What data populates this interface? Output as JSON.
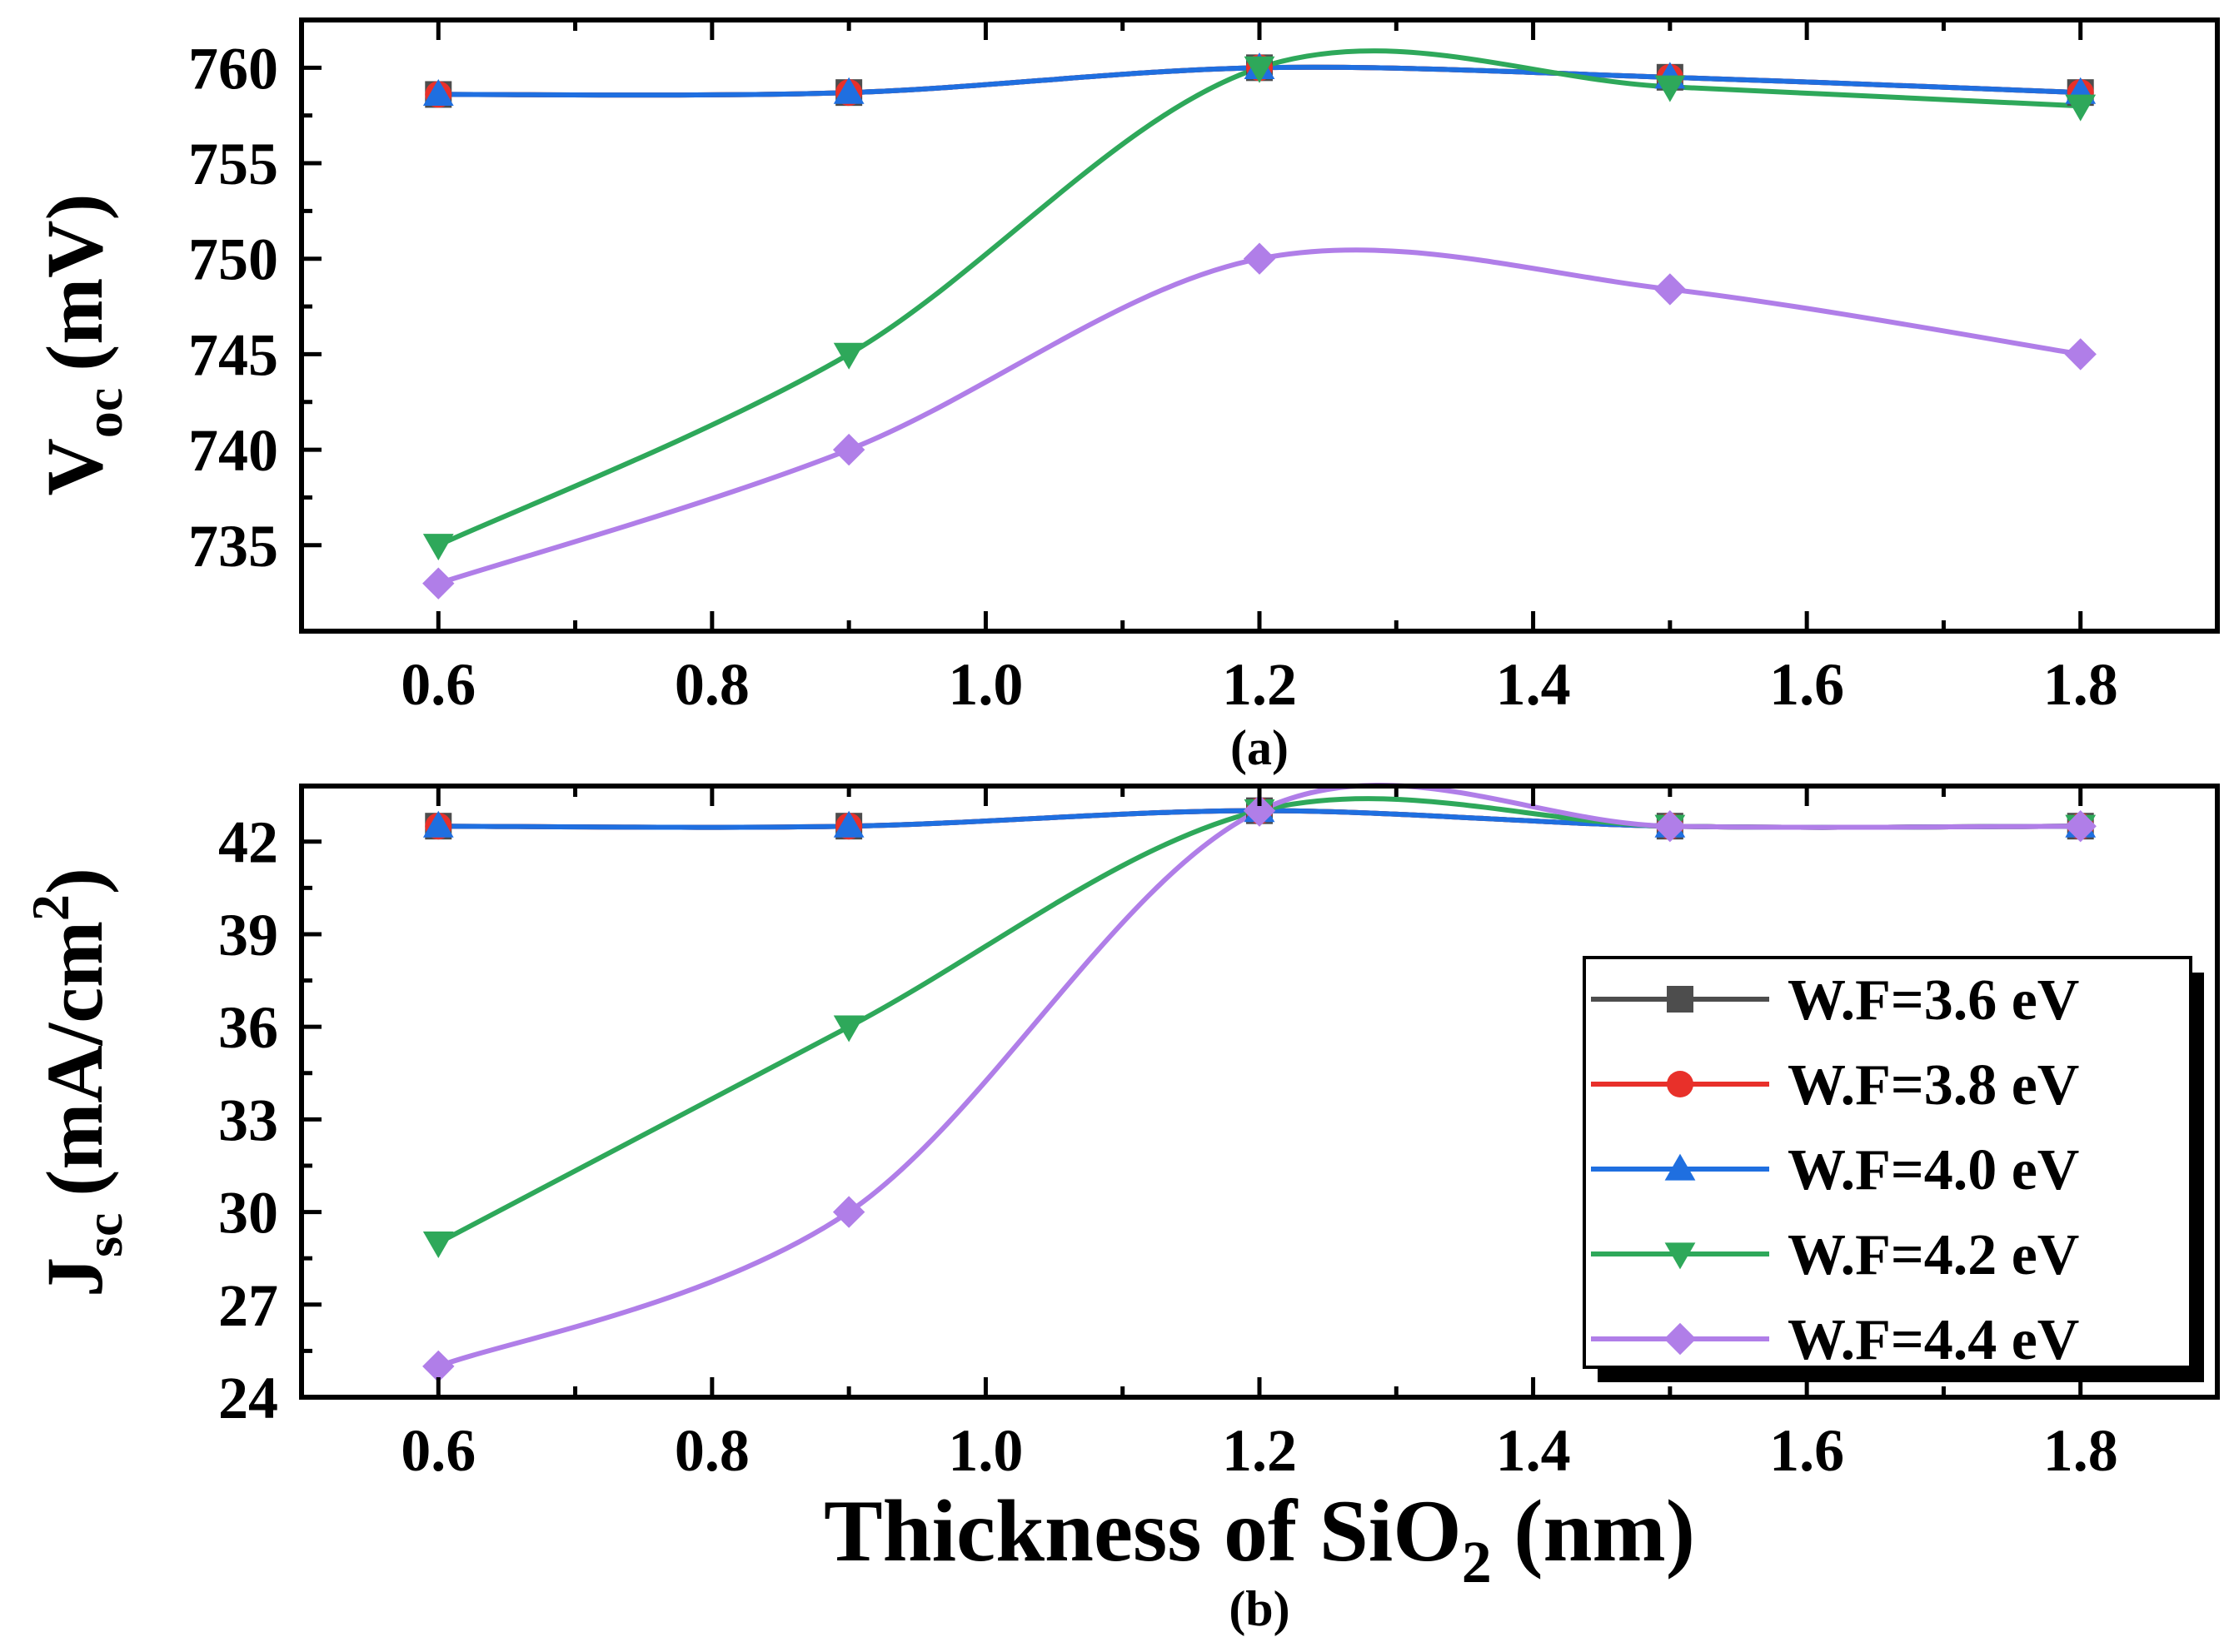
{
  "chart_data": [
    {
      "type": "line",
      "panel_label": "(a)",
      "ylabel_main": "V",
      "ylabel_sub": "oc",
      "ylabel_unit": "(mV)",
      "xlabel": "",
      "x": [
        0.6,
        0.9,
        1.2,
        1.5,
        1.8
      ],
      "xlim": [
        0.5,
        1.9
      ],
      "ylim": [
        730.5,
        762.5
      ],
      "xticks": [
        "0.6",
        "0.8",
        "1.0",
        "1.2",
        "1.4",
        "1.6",
        "1.8"
      ],
      "xtick_values": [
        0.6,
        0.8,
        1.0,
        1.2,
        1.4,
        1.6,
        1.8
      ],
      "yticks": [
        "735",
        "740",
        "745",
        "750",
        "755",
        "760"
      ],
      "ytick_values": [
        735,
        740,
        745,
        750,
        755,
        760
      ],
      "grid": false,
      "series": [
        {
          "name": "W.F=3.6 eV",
          "values": [
            758.6,
            758.7,
            760.0,
            759.5,
            758.7
          ]
        },
        {
          "name": "W.F=3.8 eV",
          "values": [
            758.6,
            758.7,
            760.0,
            759.5,
            758.7
          ]
        },
        {
          "name": "W.F=4.0 eV",
          "values": [
            758.6,
            758.7,
            760.0,
            759.5,
            758.7
          ]
        },
        {
          "name": "W.F=4.2 eV",
          "values": [
            735.0,
            745.0,
            760.0,
            759.0,
            758.0
          ]
        },
        {
          "name": "W.F=4.4 eV",
          "values": [
            733.0,
            740.0,
            750.0,
            748.4,
            745.0
          ]
        }
      ]
    },
    {
      "type": "line",
      "panel_label": "(b)",
      "ylabel_main": "J",
      "ylabel_sub": "sc",
      "ylabel_unit": "(mA/cm",
      "ylabel_sup": "2",
      "ylabel_close": ")",
      "xlabel_main": "Thickness of SiO",
      "xlabel_sub": "2",
      "xlabel_unit": " (nm)",
      "x": [
        0.6,
        0.9,
        1.2,
        1.5,
        1.8
      ],
      "xlim": [
        0.5,
        1.9
      ],
      "ylim": [
        24,
        43.8
      ],
      "xticks": [
        "0.6",
        "0.8",
        "1.0",
        "1.2",
        "1.4",
        "1.6",
        "1.8"
      ],
      "xtick_values": [
        0.6,
        0.8,
        1.0,
        1.2,
        1.4,
        1.6,
        1.8
      ],
      "yticks": [
        "24",
        "27",
        "30",
        "33",
        "36",
        "39",
        "42"
      ],
      "ytick_values": [
        24,
        27,
        30,
        33,
        36,
        39,
        42
      ],
      "grid": false,
      "legend_position": "right",
      "series": [
        {
          "name": "W.F=3.6 eV",
          "values": [
            42.5,
            42.5,
            43.0,
            42.5,
            42.5
          ]
        },
        {
          "name": "W.F=3.8 eV",
          "values": [
            42.5,
            42.5,
            43.0,
            42.5,
            42.5
          ]
        },
        {
          "name": "W.F=4.0 eV",
          "values": [
            42.5,
            42.5,
            43.0,
            42.5,
            42.5
          ]
        },
        {
          "name": "W.F=4.2 eV",
          "values": [
            29.0,
            36.0,
            43.0,
            42.5,
            42.5
          ]
        },
        {
          "name": "W.F=4.4 eV",
          "values": [
            25.0,
            30.0,
            43.0,
            42.5,
            42.5
          ]
        }
      ]
    }
  ],
  "series_style": [
    {
      "color": "#4d4d4d",
      "marker": "square"
    },
    {
      "color": "#e8302a",
      "marker": "circle"
    },
    {
      "color": "#1f6fe0",
      "marker": "triangle-up"
    },
    {
      "color": "#2ea85a",
      "marker": "triangle-down"
    },
    {
      "color": "#b07ee8",
      "marker": "diamond"
    }
  ]
}
